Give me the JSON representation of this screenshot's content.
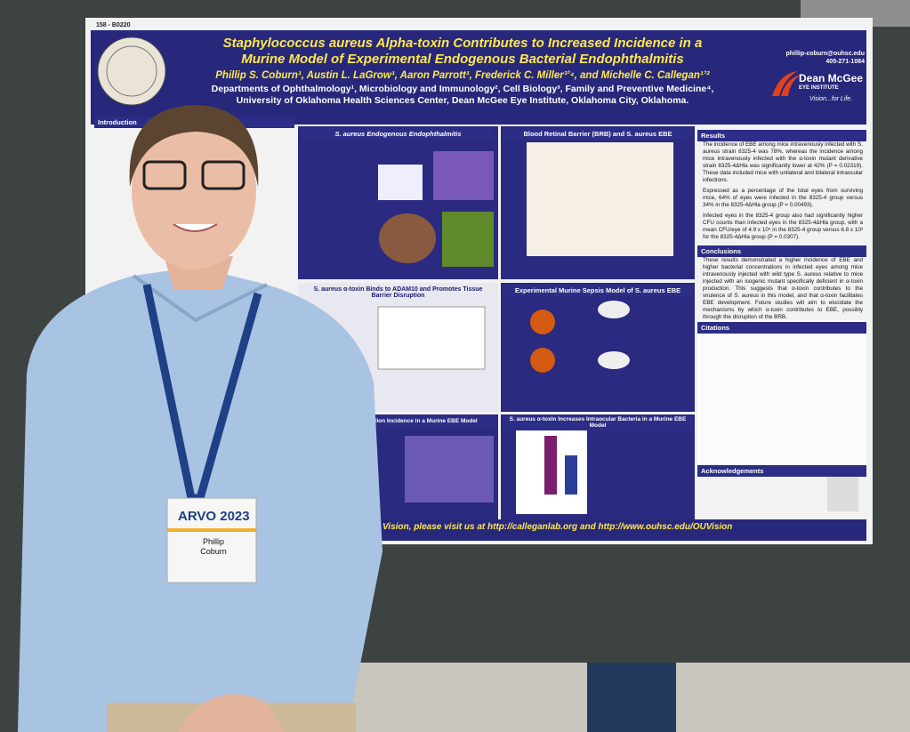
{
  "poster": {
    "id": "158 - B0220",
    "title_lines": [
      "Staphylococcus aureus Alpha-toxin Contributes to Increased Incidence in a",
      "Murine Model of Experimental Endogenous Bacterial Endophthalmitis"
    ],
    "authors": "Phillip S. Coburn¹, Austin L. LaGrow¹, Aaron Parrott¹, Frederick C. Miller³ʼ⁴, and Michelle C. Callegan¹ʼ²",
    "affiliations": [
      "Departments of Ophthalmology¹, Microbiology and Immunology², Cell Biology³, Family and Preventive Medicine⁴,",
      "University of Oklahoma Health Sciences Center, Dean McGee Eye Institute, Oklahoma City, Oklahoma."
    ],
    "contact": [
      "phillip-coburn@ouhsc.edu",
      "405-271-1084"
    ],
    "logo": [
      "Dean McGee",
      "EYE INSTITUTE"
    ],
    "tagline": "Vision...for Life.",
    "headings": [
      "Introduction",
      "S. aureus Endogenous Endophthalmitis",
      "Blood Retinal Barrier (BRB) and S. aureus EBE",
      "S. aureus α-toxin Binds to ADAM10 and Promotes Tissue Barrier Disruption",
      "Experimental Murine Sepsis Model of S. aureus EBE",
      "Infection Incidence in a Murine EBE Model",
      "S. aureus α-toxin Increases Intraocular Bacteria in a Murine EBE Model"
    ],
    "results": {
      "heading": "Results",
      "paragraphs": [
        "The incidence of EBE among mice intravenously infected with S. aureus strain 8325-4 was 78%, whereas the incidence among mice intravenously infected with the α-toxin mutant derivative strain 8325-4ΔHla was significantly lower at 42% (P = 0.02319). These data included mice with unilateral and bilateral intraocular infections.",
        "Expressed as a percentage of the total eyes from surviving mice, 64% of eyes were infected in the 8325-4 group versus 34% in the 8325-4ΔHla group (P = 0.00493).",
        "Infected eyes in the 8325-4 group also had significantly higher CFU counts than infected eyes in the 8325-4ΔHla group, with a mean CFU/eye of 4.9 x 10⁵ in the 8325-4 group versus 6.8 x 10³ for the 8325-4ΔHla group (P = 0.0307)."
      ]
    },
    "conclusions": {
      "heading": "Conclusions",
      "text": "These results demonstrated a higher incidence of EBE and higher bacterial concentrations in infected eyes among mice intravenously injected with wild type S. aureus relative to mice injected with an isogenic mutant specifically deficient in α-toxin production. This suggests that α-toxin contributes to the virulence of S. aureus in this model, and that α-toxin facilitates EBE development. Future studies will aim to elucidate the mechanisms by which α-toxin contributes to EBE, possibly through the disruption of the BRB."
    },
    "citations_heading": "Citations",
    "acknowledgements_heading": "Acknowledgements",
    "footer": "Vision, please visit us at http://calleganlab.org and http://www.ouhsc.edu/OUVision"
  },
  "badge": {
    "event": "ARVO 2023",
    "name": [
      "Phillip",
      "Coburn"
    ]
  }
}
